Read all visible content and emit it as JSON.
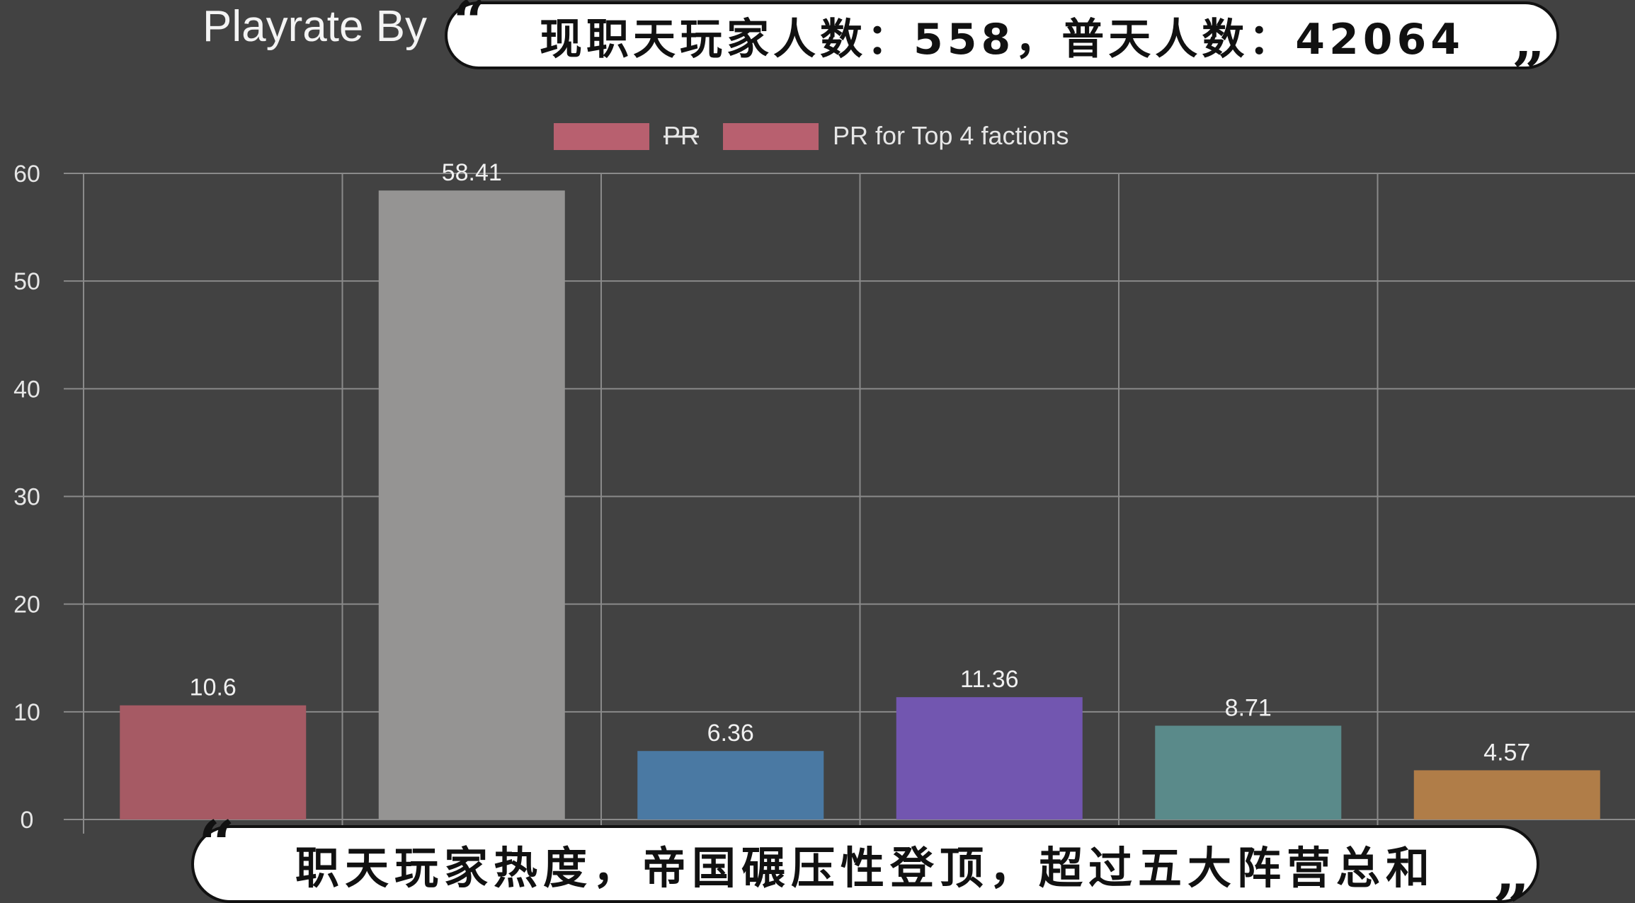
{
  "title": "Playrate By",
  "caption_top": "现职天玩家人数：558，普天人数：42064",
  "caption_bottom": "职天玩家热度，帝国碾压性登顶，超过五大阵营总和",
  "quotes": {
    "open": "“",
    "close": "”"
  },
  "chart_data": {
    "type": "bar",
    "legend": [
      {
        "label": "PR",
        "color": "#b8606f",
        "struck": true
      },
      {
        "label": "PR for Top 4 factions",
        "color": "#b8606f",
        "struck": false
      }
    ],
    "legend_position": "top-center",
    "values": [
      10.6,
      58.41,
      6.36,
      11.36,
      8.71,
      4.57
    ],
    "value_labels": [
      "10.6",
      "58.41",
      "6.36",
      "11.36",
      "8.71",
      "4.57"
    ],
    "colors": [
      "#a65a64",
      "#959493",
      "#4a79a3",
      "#7256b0",
      "#5a8a8a",
      "#b07d48"
    ],
    "ylim": [
      0,
      60
    ],
    "yticks": [
      0,
      10,
      20,
      30,
      40,
      50,
      60
    ],
    "grid": true
  }
}
